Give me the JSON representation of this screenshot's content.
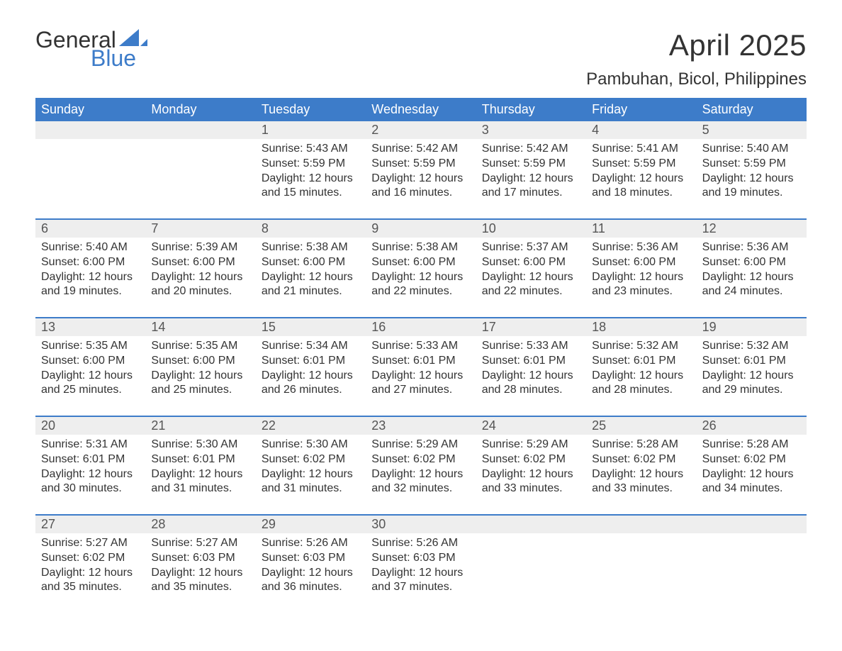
{
  "logo": {
    "word1": "General",
    "word2": "Blue",
    "color_word1": "#333333",
    "color_word2": "#3d7cc9"
  },
  "title": "April 2025",
  "location": "Pambuhan, Bicol, Philippines",
  "colors": {
    "header_bg": "#3d7cc9",
    "header_text": "#ffffff",
    "strip_bg": "#eeeeee",
    "border": "#3d7cc9",
    "body_text": "#333333",
    "daynum_text": "#555555",
    "page_bg": "#ffffff"
  },
  "typography": {
    "title_fontsize": 42,
    "location_fontsize": 24,
    "dow_fontsize": 18,
    "daynum_fontsize": 18,
    "body_fontsize": 16,
    "font_family": "Arial"
  },
  "days_of_week": [
    "Sunday",
    "Monday",
    "Tuesday",
    "Wednesday",
    "Thursday",
    "Friday",
    "Saturday"
  ],
  "labels": {
    "sunrise": "Sunrise:",
    "sunset": "Sunset:",
    "daylight": "Daylight:"
  },
  "weeks": [
    [
      null,
      null,
      {
        "n": "1",
        "sunrise": "5:43 AM",
        "sunset": "5:59 PM",
        "daylight": "12 hours and 15 minutes."
      },
      {
        "n": "2",
        "sunrise": "5:42 AM",
        "sunset": "5:59 PM",
        "daylight": "12 hours and 16 minutes."
      },
      {
        "n": "3",
        "sunrise": "5:42 AM",
        "sunset": "5:59 PM",
        "daylight": "12 hours and 17 minutes."
      },
      {
        "n": "4",
        "sunrise": "5:41 AM",
        "sunset": "5:59 PM",
        "daylight": "12 hours and 18 minutes."
      },
      {
        "n": "5",
        "sunrise": "5:40 AM",
        "sunset": "5:59 PM",
        "daylight": "12 hours and 19 minutes."
      }
    ],
    [
      {
        "n": "6",
        "sunrise": "5:40 AM",
        "sunset": "6:00 PM",
        "daylight": "12 hours and 19 minutes."
      },
      {
        "n": "7",
        "sunrise": "5:39 AM",
        "sunset": "6:00 PM",
        "daylight": "12 hours and 20 minutes."
      },
      {
        "n": "8",
        "sunrise": "5:38 AM",
        "sunset": "6:00 PM",
        "daylight": "12 hours and 21 minutes."
      },
      {
        "n": "9",
        "sunrise": "5:38 AM",
        "sunset": "6:00 PM",
        "daylight": "12 hours and 22 minutes."
      },
      {
        "n": "10",
        "sunrise": "5:37 AM",
        "sunset": "6:00 PM",
        "daylight": "12 hours and 22 minutes."
      },
      {
        "n": "11",
        "sunrise": "5:36 AM",
        "sunset": "6:00 PM",
        "daylight": "12 hours and 23 minutes."
      },
      {
        "n": "12",
        "sunrise": "5:36 AM",
        "sunset": "6:00 PM",
        "daylight": "12 hours and 24 minutes."
      }
    ],
    [
      {
        "n": "13",
        "sunrise": "5:35 AM",
        "sunset": "6:00 PM",
        "daylight": "12 hours and 25 minutes."
      },
      {
        "n": "14",
        "sunrise": "5:35 AM",
        "sunset": "6:00 PM",
        "daylight": "12 hours and 25 minutes."
      },
      {
        "n": "15",
        "sunrise": "5:34 AM",
        "sunset": "6:01 PM",
        "daylight": "12 hours and 26 minutes."
      },
      {
        "n": "16",
        "sunrise": "5:33 AM",
        "sunset": "6:01 PM",
        "daylight": "12 hours and 27 minutes."
      },
      {
        "n": "17",
        "sunrise": "5:33 AM",
        "sunset": "6:01 PM",
        "daylight": "12 hours and 28 minutes."
      },
      {
        "n": "18",
        "sunrise": "5:32 AM",
        "sunset": "6:01 PM",
        "daylight": "12 hours and 28 minutes."
      },
      {
        "n": "19",
        "sunrise": "5:32 AM",
        "sunset": "6:01 PM",
        "daylight": "12 hours and 29 minutes."
      }
    ],
    [
      {
        "n": "20",
        "sunrise": "5:31 AM",
        "sunset": "6:01 PM",
        "daylight": "12 hours and 30 minutes."
      },
      {
        "n": "21",
        "sunrise": "5:30 AM",
        "sunset": "6:01 PM",
        "daylight": "12 hours and 31 minutes."
      },
      {
        "n": "22",
        "sunrise": "5:30 AM",
        "sunset": "6:02 PM",
        "daylight": "12 hours and 31 minutes."
      },
      {
        "n": "23",
        "sunrise": "5:29 AM",
        "sunset": "6:02 PM",
        "daylight": "12 hours and 32 minutes."
      },
      {
        "n": "24",
        "sunrise": "5:29 AM",
        "sunset": "6:02 PM",
        "daylight": "12 hours and 33 minutes."
      },
      {
        "n": "25",
        "sunrise": "5:28 AM",
        "sunset": "6:02 PM",
        "daylight": "12 hours and 33 minutes."
      },
      {
        "n": "26",
        "sunrise": "5:28 AM",
        "sunset": "6:02 PM",
        "daylight": "12 hours and 34 minutes."
      }
    ],
    [
      {
        "n": "27",
        "sunrise": "5:27 AM",
        "sunset": "6:02 PM",
        "daylight": "12 hours and 35 minutes."
      },
      {
        "n": "28",
        "sunrise": "5:27 AM",
        "sunset": "6:03 PM",
        "daylight": "12 hours and 35 minutes."
      },
      {
        "n": "29",
        "sunrise": "5:26 AM",
        "sunset": "6:03 PM",
        "daylight": "12 hours and 36 minutes."
      },
      {
        "n": "30",
        "sunrise": "5:26 AM",
        "sunset": "6:03 PM",
        "daylight": "12 hours and 37 minutes."
      },
      null,
      null,
      null
    ]
  ]
}
